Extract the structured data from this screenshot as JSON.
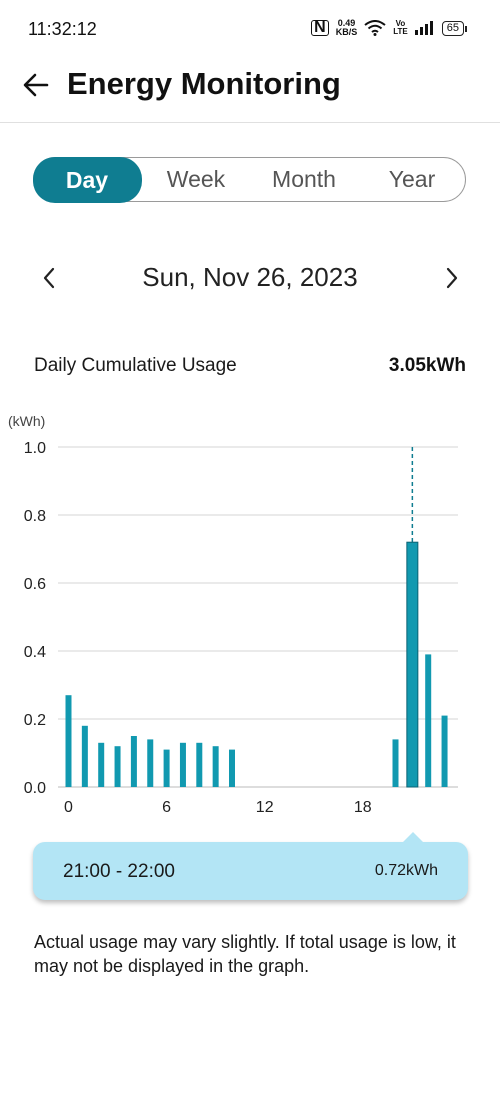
{
  "status_bar": {
    "time": "11:32:12",
    "speed_value": "0.49",
    "speed_unit": "KB/S",
    "volte_top": "Vo",
    "volte_bottom": "LTE",
    "battery": "65"
  },
  "header": {
    "title": "Energy Monitoring"
  },
  "tabs": [
    {
      "label": "Day",
      "active": true
    },
    {
      "label": "Week",
      "active": false
    },
    {
      "label": "Month",
      "active": false
    },
    {
      "label": "Year",
      "active": false
    }
  ],
  "date_nav": {
    "date": "Sun, Nov 26, 2023"
  },
  "summary": {
    "label": "Daily Cumulative Usage",
    "value": "3.05kWh"
  },
  "colors": {
    "accent": "#0f7d91",
    "bar": "#1199b0",
    "tooltip_bg": "#b3e5f5"
  },
  "chart_data": {
    "type": "bar",
    "ylabel": "(kWh)",
    "ylim": [
      0,
      1.0
    ],
    "y_ticks": [
      "0.0",
      "0.2",
      "0.4",
      "0.6",
      "0.8",
      "1.0"
    ],
    "x_ticks": [
      "0",
      "6",
      "12",
      "18"
    ],
    "x": [
      0,
      1,
      2,
      3,
      4,
      5,
      6,
      7,
      8,
      9,
      10,
      11,
      12,
      13,
      14,
      15,
      16,
      17,
      18,
      19,
      20,
      21,
      22,
      23
    ],
    "values": [
      0.27,
      0.18,
      0.13,
      0.12,
      0.15,
      0.14,
      0.11,
      0.13,
      0.13,
      0.12,
      0.11,
      0,
      0,
      0,
      0,
      0,
      0,
      0,
      0,
      0,
      0.14,
      0.72,
      0.39,
      0.21
    ],
    "selected_hour": 21,
    "grid": true
  },
  "tooltip": {
    "time_range": "21:00 - 22:00",
    "value": "0.72kWh"
  },
  "disclaimer": "Actual usage may vary slightly. If total usage is low, it may not be displayed in the graph."
}
